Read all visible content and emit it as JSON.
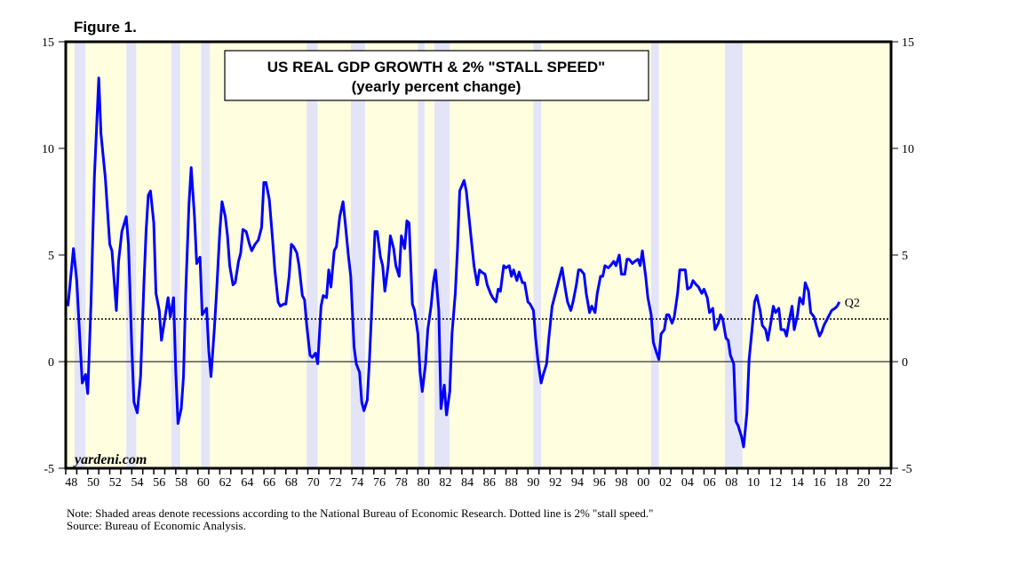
{
  "figure_label": "Figure 1.",
  "chart_data": {
    "type": "line",
    "title": "US REAL GDP GROWTH & 2% \"STALL SPEED\"",
    "subtitle": "(yearly percent change)",
    "xlim": [
      1948,
      2023
    ],
    "ylim": [
      -5,
      15
    ],
    "y_ticks": [
      -5,
      0,
      5,
      10,
      15
    ],
    "x_tick_labels": [
      "48",
      "50",
      "52",
      "54",
      "56",
      "58",
      "60",
      "62",
      "64",
      "66",
      "68",
      "70",
      "72",
      "74",
      "76",
      "78",
      "80",
      "82",
      "84",
      "86",
      "88",
      "90",
      "92",
      "94",
      "96",
      "98",
      "00",
      "02",
      "04",
      "06",
      "08",
      "10",
      "12",
      "14",
      "16",
      "18",
      "20",
      "22"
    ],
    "reference_lines": [
      {
        "value": 0,
        "style": "solid"
      },
      {
        "value": 2,
        "style": "dotted"
      }
    ],
    "recessions": [
      [
        1948.8,
        1949.8
      ],
      [
        1953.5,
        1954.4
      ],
      [
        1957.6,
        1958.4
      ],
      [
        1960.3,
        1961.1
      ],
      [
        1969.9,
        1970.9
      ],
      [
        1973.9,
        1975.2
      ],
      [
        1980.0,
        1980.6
      ],
      [
        1981.5,
        1982.9
      ],
      [
        1990.5,
        1991.2
      ],
      [
        2001.2,
        2001.9
      ],
      [
        2007.9,
        2009.5
      ]
    ],
    "end_label": "Q2",
    "series": [
      {
        "color": "#0000FF",
        "points": [
          [
            1948.2,
            2.6
          ],
          [
            1948.7,
            5.3
          ],
          [
            1949.0,
            3.8
          ],
          [
            1949.3,
            0.9
          ],
          [
            1949.5,
            -1.0
          ],
          [
            1949.8,
            -0.6
          ],
          [
            1950.0,
            -1.5
          ],
          [
            1950.3,
            2.8
          ],
          [
            1950.6,
            8.6
          ],
          [
            1951.0,
            13.3
          ],
          [
            1951.2,
            10.7
          ],
          [
            1951.6,
            8.6
          ],
          [
            1952.0,
            5.5
          ],
          [
            1952.2,
            5.2
          ],
          [
            1952.6,
            2.4
          ],
          [
            1952.8,
            4.7
          ],
          [
            1953.1,
            6.1
          ],
          [
            1953.5,
            6.8
          ],
          [
            1953.7,
            5.5
          ],
          [
            1954.0,
            0.7
          ],
          [
            1954.2,
            -1.9
          ],
          [
            1954.5,
            -2.4
          ],
          [
            1954.8,
            -0.7
          ],
          [
            1955.1,
            3.6
          ],
          [
            1955.3,
            6.1
          ],
          [
            1955.5,
            7.8
          ],
          [
            1955.7,
            8.0
          ],
          [
            1956.0,
            6.5
          ],
          [
            1956.2,
            3.2
          ],
          [
            1956.5,
            2.4
          ],
          [
            1956.7,
            1.0
          ],
          [
            1957.0,
            2.0
          ],
          [
            1957.3,
            3.0
          ],
          [
            1957.5,
            2.1
          ],
          [
            1957.8,
            3.0
          ],
          [
            1958.0,
            -0.5
          ],
          [
            1958.2,
            -2.9
          ],
          [
            1958.5,
            -2.2
          ],
          [
            1958.7,
            -0.7
          ],
          [
            1958.9,
            3.2
          ],
          [
            1959.2,
            7.4
          ],
          [
            1959.4,
            9.1
          ],
          [
            1959.7,
            6.8
          ],
          [
            1959.9,
            4.6
          ],
          [
            1960.2,
            4.9
          ],
          [
            1960.4,
            2.2
          ],
          [
            1960.8,
            2.5
          ],
          [
            1961.0,
            0.5
          ],
          [
            1961.2,
            -0.7
          ],
          [
            1961.5,
            1.5
          ],
          [
            1961.7,
            3.2
          ],
          [
            1962.0,
            6.1
          ],
          [
            1962.2,
            7.5
          ],
          [
            1962.5,
            6.8
          ],
          [
            1962.7,
            5.9
          ],
          [
            1962.9,
            4.5
          ],
          [
            1963.2,
            3.6
          ],
          [
            1963.4,
            3.7
          ],
          [
            1963.7,
            4.7
          ],
          [
            1963.9,
            5.1
          ],
          [
            1964.1,
            6.2
          ],
          [
            1964.4,
            6.1
          ],
          [
            1964.7,
            5.5
          ],
          [
            1964.9,
            5.2
          ],
          [
            1965.2,
            5.5
          ],
          [
            1965.5,
            5.7
          ],
          [
            1965.8,
            6.3
          ],
          [
            1966.0,
            8.4
          ],
          [
            1966.2,
            8.4
          ],
          [
            1966.5,
            7.6
          ],
          [
            1966.8,
            5.7
          ],
          [
            1967.0,
            4.3
          ],
          [
            1967.3,
            2.8
          ],
          [
            1967.5,
            2.6
          ],
          [
            1967.8,
            2.7
          ],
          [
            1968.0,
            2.7
          ],
          [
            1968.3,
            4.0
          ],
          [
            1968.5,
            5.5
          ],
          [
            1968.7,
            5.4
          ],
          [
            1969.0,
            5.1
          ],
          [
            1969.2,
            4.5
          ],
          [
            1969.5,
            3.1
          ],
          [
            1969.7,
            2.9
          ],
          [
            1969.9,
            1.7
          ],
          [
            1970.2,
            0.3
          ],
          [
            1970.4,
            0.2
          ],
          [
            1970.7,
            0.4
          ],
          [
            1970.9,
            -0.1
          ],
          [
            1971.2,
            2.6
          ],
          [
            1971.4,
            3.1
          ],
          [
            1971.7,
            3.0
          ],
          [
            1971.9,
            4.3
          ],
          [
            1972.1,
            3.5
          ],
          [
            1972.4,
            5.2
          ],
          [
            1972.6,
            5.4
          ],
          [
            1972.9,
            6.8
          ],
          [
            1973.2,
            7.5
          ],
          [
            1973.4,
            6.5
          ],
          [
            1973.7,
            4.9
          ],
          [
            1973.9,
            4.0
          ],
          [
            1974.2,
            0.7
          ],
          [
            1974.4,
            -0.1
          ],
          [
            1974.7,
            -0.5
          ],
          [
            1974.9,
            -1.9
          ],
          [
            1975.1,
            -2.3
          ],
          [
            1975.4,
            -1.8
          ],
          [
            1975.6,
            0.1
          ],
          [
            1975.8,
            2.4
          ],
          [
            1976.1,
            6.1
          ],
          [
            1976.3,
            6.1
          ],
          [
            1976.6,
            4.9
          ],
          [
            1976.8,
            4.5
          ],
          [
            1977.0,
            3.3
          ],
          [
            1977.3,
            4.5
          ],
          [
            1977.5,
            5.9
          ],
          [
            1977.8,
            5.3
          ],
          [
            1978.0,
            4.5
          ],
          [
            1978.3,
            4.0
          ],
          [
            1978.5,
            5.9
          ],
          [
            1978.8,
            5.3
          ],
          [
            1979.0,
            6.6
          ],
          [
            1979.2,
            6.5
          ],
          [
            1979.5,
            2.7
          ],
          [
            1979.7,
            2.4
          ],
          [
            1980.0,
            1.3
          ],
          [
            1980.2,
            -0.5
          ],
          [
            1980.4,
            -1.4
          ],
          [
            1980.7,
            -0.1
          ],
          [
            1980.9,
            1.5
          ],
          [
            1981.2,
            2.6
          ],
          [
            1981.4,
            3.7
          ],
          [
            1981.6,
            4.3
          ],
          [
            1981.9,
            2.4
          ],
          [
            1982.1,
            -2.2
          ],
          [
            1982.4,
            -1.1
          ],
          [
            1982.6,
            -2.5
          ],
          [
            1982.9,
            -1.4
          ],
          [
            1983.1,
            1.3
          ],
          [
            1983.4,
            3.2
          ],
          [
            1983.6,
            5.3
          ],
          [
            1983.8,
            8.0
          ],
          [
            1984.2,
            8.5
          ],
          [
            1984.4,
            8.0
          ],
          [
            1984.6,
            7.0
          ],
          [
            1984.9,
            5.5
          ],
          [
            1985.1,
            4.5
          ],
          [
            1985.4,
            3.6
          ],
          [
            1985.6,
            4.3
          ],
          [
            1985.8,
            4.2
          ],
          [
            1986.1,
            4.1
          ],
          [
            1986.3,
            3.6
          ],
          [
            1986.6,
            3.2
          ],
          [
            1986.8,
            3.0
          ],
          [
            1987.1,
            2.8
          ],
          [
            1987.3,
            3.4
          ],
          [
            1987.5,
            3.3
          ],
          [
            1987.8,
            4.5
          ],
          [
            1988.0,
            4.4
          ],
          [
            1988.3,
            4.5
          ],
          [
            1988.5,
            4.0
          ],
          [
            1988.7,
            4.3
          ],
          [
            1989.0,
            3.8
          ],
          [
            1989.2,
            4.2
          ],
          [
            1989.5,
            3.7
          ],
          [
            1989.7,
            3.7
          ],
          [
            1990.0,
            2.8
          ],
          [
            1990.2,
            2.7
          ],
          [
            1990.5,
            2.4
          ],
          [
            1990.7,
            1.1
          ],
          [
            1990.9,
            0.1
          ],
          [
            1991.2,
            -1.0
          ],
          [
            1991.4,
            -0.6
          ],
          [
            1991.7,
            -0.1
          ],
          [
            1991.9,
            1.1
          ],
          [
            1992.2,
            2.6
          ],
          [
            1992.4,
            3.0
          ],
          [
            1992.6,
            3.4
          ],
          [
            1992.9,
            4.0
          ],
          [
            1993.1,
            4.4
          ],
          [
            1993.4,
            3.4
          ],
          [
            1993.6,
            2.8
          ],
          [
            1993.9,
            2.4
          ],
          [
            1994.1,
            2.8
          ],
          [
            1994.4,
            3.6
          ],
          [
            1994.6,
            4.3
          ],
          [
            1994.8,
            4.3
          ],
          [
            1995.1,
            4.1
          ],
          [
            1995.3,
            3.2
          ],
          [
            1995.6,
            2.3
          ],
          [
            1995.8,
            2.6
          ],
          [
            1996.1,
            2.3
          ],
          [
            1996.3,
            3.2
          ],
          [
            1996.6,
            4.0
          ],
          [
            1996.8,
            4.0
          ],
          [
            1997.0,
            4.5
          ],
          [
            1997.3,
            4.4
          ],
          [
            1997.5,
            4.5
          ],
          [
            1997.8,
            4.7
          ],
          [
            1998.0,
            4.5
          ],
          [
            1998.3,
            5.0
          ],
          [
            1998.5,
            4.1
          ],
          [
            1998.8,
            4.1
          ],
          [
            1999.0,
            4.8
          ],
          [
            1999.2,
            4.8
          ],
          [
            1999.5,
            4.6
          ],
          [
            1999.7,
            4.7
          ],
          [
            2000.0,
            4.8
          ],
          [
            2000.2,
            4.5
          ],
          [
            2000.4,
            5.2
          ],
          [
            2000.7,
            4.0
          ],
          [
            2000.9,
            3.0
          ],
          [
            2001.2,
            2.2
          ],
          [
            2001.4,
            0.9
          ],
          [
            2001.7,
            0.4
          ],
          [
            2001.9,
            0.1
          ],
          [
            2002.1,
            1.3
          ],
          [
            2002.4,
            1.5
          ],
          [
            2002.6,
            2.2
          ],
          [
            2002.8,
            2.2
          ],
          [
            2003.1,
            1.8
          ],
          [
            2003.3,
            2.1
          ],
          [
            2003.6,
            3.2
          ],
          [
            2003.8,
            4.3
          ],
          [
            2004.1,
            4.3
          ],
          [
            2004.3,
            4.3
          ],
          [
            2004.5,
            3.4
          ],
          [
            2004.8,
            3.5
          ],
          [
            2005.0,
            3.8
          ],
          [
            2005.3,
            3.6
          ],
          [
            2005.5,
            3.5
          ],
          [
            2005.8,
            3.2
          ],
          [
            2006.0,
            3.4
          ],
          [
            2006.3,
            3.0
          ],
          [
            2006.5,
            2.3
          ],
          [
            2006.8,
            2.5
          ],
          [
            2007.0,
            1.5
          ],
          [
            2007.3,
            1.8
          ],
          [
            2007.5,
            2.2
          ],
          [
            2007.7,
            2.0
          ],
          [
            2008.0,
            1.1
          ],
          [
            2008.2,
            1.0
          ],
          [
            2008.4,
            0.3
          ],
          [
            2008.7,
            -0.1
          ],
          [
            2008.9,
            -2.8
          ],
          [
            2009.1,
            -3.0
          ],
          [
            2009.4,
            -3.5
          ],
          [
            2009.6,
            -4.0
          ],
          [
            2009.9,
            -2.4
          ],
          [
            2010.1,
            0.1
          ],
          [
            2010.4,
            1.7
          ],
          [
            2010.6,
            2.8
          ],
          [
            2010.8,
            3.1
          ],
          [
            2011.1,
            2.4
          ],
          [
            2011.3,
            1.7
          ],
          [
            2011.6,
            1.5
          ],
          [
            2011.8,
            1.0
          ],
          [
            2012.1,
            1.9
          ],
          [
            2012.3,
            2.6
          ],
          [
            2012.5,
            2.3
          ],
          [
            2012.8,
            2.5
          ],
          [
            2013.0,
            1.5
          ],
          [
            2013.3,
            1.5
          ],
          [
            2013.5,
            1.2
          ],
          [
            2013.7,
            1.8
          ],
          [
            2014.0,
            2.6
          ],
          [
            2014.2,
            1.5
          ],
          [
            2014.5,
            2.2
          ],
          [
            2014.7,
            3.0
          ],
          [
            2015.0,
            2.7
          ],
          [
            2015.2,
            3.7
          ],
          [
            2015.5,
            3.3
          ],
          [
            2015.7,
            2.3
          ],
          [
            2016.0,
            2.1
          ],
          [
            2016.2,
            1.7
          ],
          [
            2016.5,
            1.2
          ],
          [
            2016.7,
            1.4
          ],
          [
            2016.9,
            1.7
          ],
          [
            2017.2,
            2.0
          ],
          [
            2017.4,
            2.2
          ],
          [
            2017.6,
            2.4
          ],
          [
            2017.9,
            2.5
          ],
          [
            2018.1,
            2.6
          ],
          [
            2018.3,
            2.8
          ]
        ]
      }
    ],
    "colors": {
      "background": "#FFFFE0",
      "recession": "#E4E4F8",
      "line": "#0000FF"
    },
    "grid": false
  },
  "watermark": "yardeni.com",
  "notes": {
    "note": "Note: Shaded areas denote recessions according to the National Bureau of Economic Research. Dotted line is 2% \"stall speed.\"",
    "source": "Source: Bureau of Economic Analysis."
  }
}
